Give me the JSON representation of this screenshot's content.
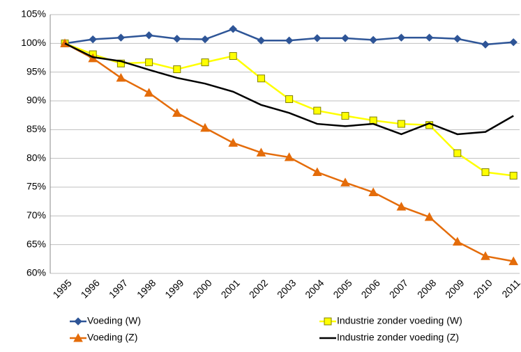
{
  "chart_data": {
    "type": "line",
    "categories": [
      "1995",
      "1996",
      "1997",
      "1998",
      "1999",
      "2000",
      "2001",
      "2002",
      "2003",
      "2004",
      "2005",
      "2006",
      "2007",
      "2008",
      "2009",
      "2010",
      "2011"
    ],
    "series": [
      {
        "name": "Voeding (W)",
        "color": "#2e5597",
        "marker": "diamond",
        "values": [
          100,
          100.7,
          101,
          101.4,
          100.8,
          100.7,
          102.5,
          100.5,
          100.5,
          100.9,
          100.9,
          100.6,
          101,
          101,
          100.8,
          99.8,
          100.2
        ]
      },
      {
        "name": "Industrie zonder voeding (W)",
        "color": "#ffff00",
        "marker": "square",
        "values": [
          100,
          98.1,
          96.5,
          96.7,
          95.5,
          96.7,
          97.8,
          93.9,
          90.3,
          88.3,
          87.4,
          86.6,
          86,
          85.8,
          80.9,
          77.6,
          77.0
        ]
      },
      {
        "name": "Voeding (Z)",
        "color": "#e46c0a",
        "marker": "triangle",
        "values": [
          100,
          97.4,
          94,
          91.4,
          87.9,
          85.3,
          82.7,
          81,
          80.2,
          77.6,
          75.8,
          74.1,
          71.6,
          69.8,
          65.5,
          63,
          62.1
        ]
      },
      {
        "name": "Industrie zonder voeding (Z)",
        "color": "#000000",
        "marker": "none",
        "values": [
          100,
          97.6,
          96.9,
          95.4,
          94.0,
          93.0,
          91.6,
          89.3,
          87.9,
          86.0,
          85.6,
          86.0,
          84.2,
          86.1,
          84.2,
          84.6,
          87.4
        ]
      }
    ],
    "ylim": [
      60,
      105
    ],
    "yticks": [
      {
        "value": 60,
        "label": "60%"
      },
      {
        "value": 65,
        "label": "65%"
      },
      {
        "value": 70,
        "label": "70%"
      },
      {
        "value": 75,
        "label": "75%"
      },
      {
        "value": 80,
        "label": "80%"
      },
      {
        "value": 85,
        "label": "85%"
      },
      {
        "value": 90,
        "label": "90%"
      },
      {
        "value": 95,
        "label": "95%"
      },
      {
        "value": 100,
        "label": "100%"
      },
      {
        "value": 105,
        "label": "105%"
      }
    ],
    "grid": true
  }
}
